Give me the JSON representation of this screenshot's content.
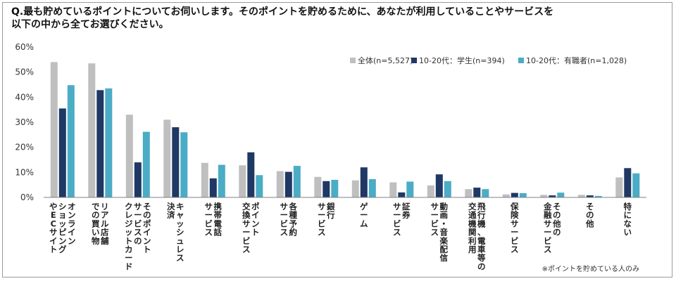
{
  "question": {
    "line1": "Q.最も貯めているポイントについてお伺いします。そのポイントを貯めるために、あなたが利用していることやサービスを",
    "line2": "以下の中から全てお選びください。"
  },
  "note": "※ポイントを貯めている人のみ",
  "chart_data": {
    "type": "bar",
    "ylim": [
      0,
      60
    ],
    "yticks": [
      0,
      10,
      20,
      30,
      40,
      50,
      60
    ],
    "ytick_labels": [
      "0%",
      "10%",
      "20%",
      "30%",
      "40%",
      "50%",
      "60%"
    ],
    "grid": false,
    "legend_position": "top-right",
    "categories": [
      [
        "オンライン",
        "ショッピング",
        "やECサイト"
      ],
      [
        "リアル店舗",
        "での買い物"
      ],
      [
        "そのポイント",
        "サービスの",
        "クレジットカード"
      ],
      [
        "キャッシュレス",
        "決済"
      ],
      [
        "携帯電話",
        "サービス"
      ],
      [
        "ポイント",
        "交換サービス"
      ],
      [
        "各種予約",
        "サービス"
      ],
      [
        "銀行",
        "サービス"
      ],
      [
        "ゲーム"
      ],
      [
        "証券",
        "サービス"
      ],
      [
        "動画・音楽配信",
        "サービス"
      ],
      [
        "飛行機、電車等の",
        "交通機関利用"
      ],
      [
        "保険サービス"
      ],
      [
        "その他の",
        "金融サービス"
      ],
      [
        "その他"
      ],
      [
        "特にない"
      ]
    ],
    "series": [
      {
        "name": "全体(n=5,527)",
        "color": "#bfbfbf",
        "values": [
          54,
          53.5,
          33,
          31,
          13.8,
          12.8,
          10.5,
          8.2,
          6.8,
          6,
          4.8,
          3.3,
          1.2,
          1,
          1,
          8
        ]
      },
      {
        "name": "10-20代：学生(n=394)",
        "color": "#1f3864",
        "values": [
          35.5,
          42.8,
          14,
          28,
          7.6,
          18,
          10.2,
          6.5,
          12,
          2,
          9.2,
          3.9,
          1.8,
          0.8,
          0.8,
          11.7
        ]
      },
      {
        "name": "10-20代：有職者(n=1,028)",
        "color": "#4bacc6",
        "values": [
          44.8,
          43.5,
          26.2,
          26,
          13,
          8.9,
          12.6,
          7,
          7.3,
          6.3,
          6.5,
          3.3,
          1.7,
          1.9,
          0.6,
          9.6
        ]
      }
    ]
  }
}
